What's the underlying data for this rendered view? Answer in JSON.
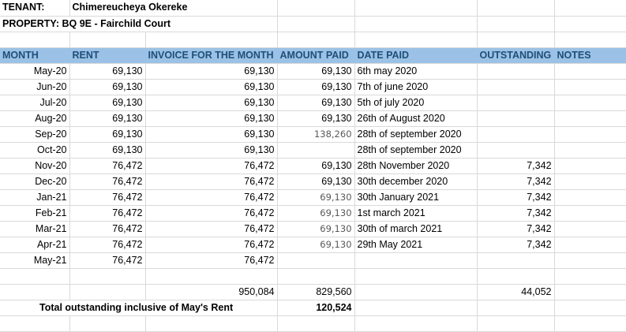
{
  "tenant": {
    "label": "TENANT:",
    "value": "Chimereucheya Okereke"
  },
  "property": {
    "label": "PROPERTY: BQ 9E - Fairchild Court"
  },
  "headers": {
    "month": "MONTH",
    "rent": "RENT",
    "invoice": "INVOICE FOR THE MONTH",
    "amount_paid": "AMOUNT PAID",
    "date_paid": "DATE PAID",
    "outstanding": "OUTSTANDING",
    "notes": "NOTES"
  },
  "rows": [
    {
      "month": "May-20",
      "rent": "69,130",
      "invoice": "69,130",
      "paid": "69,130",
      "paid_alt": false,
      "date": "6th may 2020",
      "outstanding": ""
    },
    {
      "month": "Jun-20",
      "rent": "69,130",
      "invoice": "69,130",
      "paid": "69,130",
      "paid_alt": false,
      "date": "7th of june 2020",
      "outstanding": ""
    },
    {
      "month": "Jul-20",
      "rent": "69,130",
      "invoice": "69,130",
      "paid": "69,130",
      "paid_alt": false,
      "date": "5th of july 2020",
      "outstanding": ""
    },
    {
      "month": "Aug-20",
      "rent": "69,130",
      "invoice": "69,130",
      "paid": "69,130",
      "paid_alt": false,
      "date": "26th of August 2020",
      "outstanding": ""
    },
    {
      "month": "Sep-20",
      "rent": "69,130",
      "invoice": "69,130",
      "paid": "138,260",
      "paid_alt": true,
      "date": "28th of september 2020",
      "outstanding": ""
    },
    {
      "month": "Oct-20",
      "rent": "69,130",
      "invoice": "69,130",
      "paid": "",
      "paid_alt": false,
      "date": "28th of september 2020",
      "outstanding": ""
    },
    {
      "month": "Nov-20",
      "rent": "76,472",
      "invoice": "76,472",
      "paid": "69,130",
      "paid_alt": false,
      "date": "28th November 2020",
      "outstanding": "7,342"
    },
    {
      "month": "Dec-20",
      "rent": "76,472",
      "invoice": "76,472",
      "paid": "69,130",
      "paid_alt": false,
      "date": "30th december 2020",
      "outstanding": "7,342"
    },
    {
      "month": "Jan-21",
      "rent": "76,472",
      "invoice": "76,472",
      "paid": "69,130",
      "paid_alt": true,
      "date": "30th January 2021",
      "outstanding": "7,342"
    },
    {
      "month": "Feb-21",
      "rent": "76,472",
      "invoice": "76,472",
      "paid": "69,130",
      "paid_alt": true,
      "date": "1st march 2021",
      "outstanding": "7,342"
    },
    {
      "month": "Mar-21",
      "rent": "76,472",
      "invoice": "76,472",
      "paid": "69,130",
      "paid_alt": true,
      "date": "30th of march 2021",
      "outstanding": "7,342"
    },
    {
      "month": "Apr-21",
      "rent": "76,472",
      "invoice": "76,472",
      "paid": "69,130",
      "paid_alt": true,
      "date": "29th May 2021",
      "outstanding": "7,342"
    },
    {
      "month": "May-21",
      "rent": "76,472",
      "invoice": "76,472",
      "paid": "",
      "paid_alt": false,
      "date": "",
      "outstanding": ""
    }
  ],
  "totals": {
    "invoice": "950,084",
    "paid": "829,560",
    "outstanding": "44,052"
  },
  "summary": {
    "label": "Total outstanding inclusive of May's Rent",
    "value": "120,524"
  },
  "colors": {
    "header_bg": "#9bc2e6",
    "header_text": "#1f4e79",
    "grid": "#d9d9d9"
  }
}
